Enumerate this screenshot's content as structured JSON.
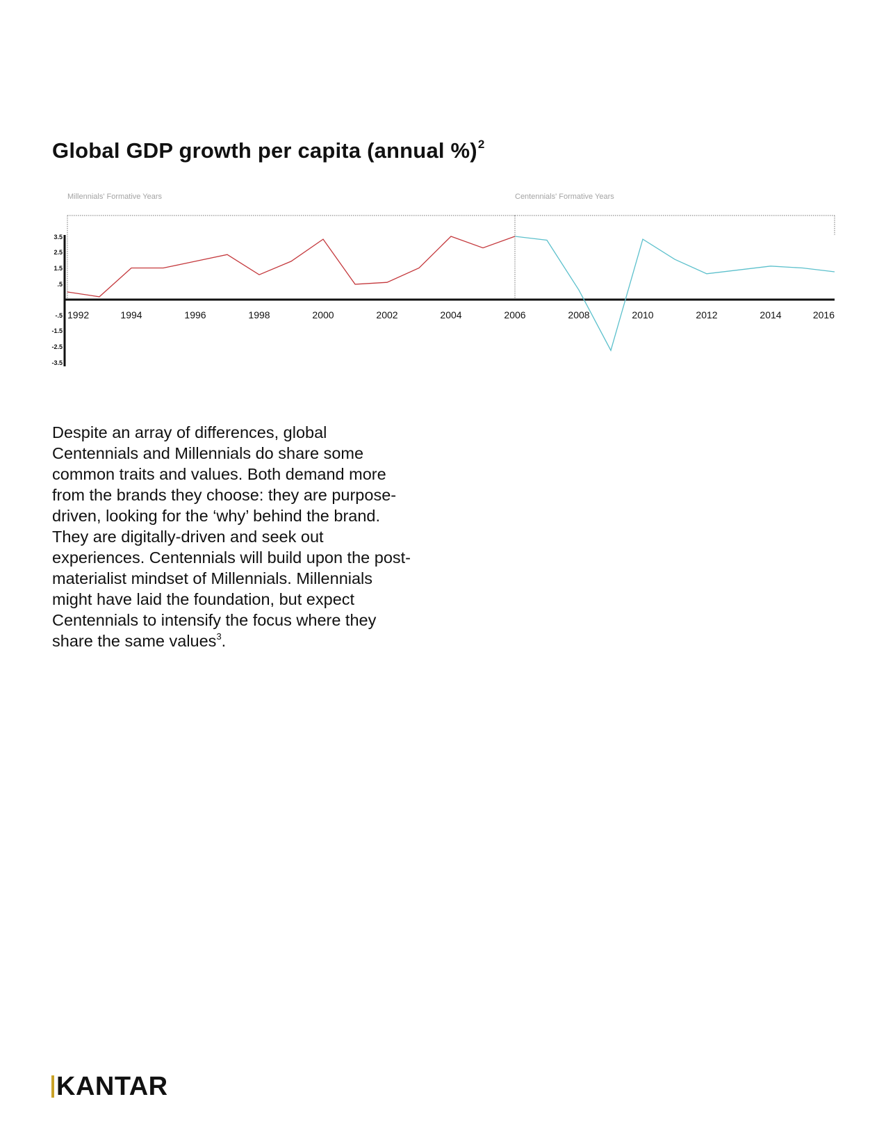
{
  "title": {
    "text": "Global GDP growth per capita (annual %)",
    "footnote": "2"
  },
  "body": {
    "paragraph": "Despite an array of differences, global Centennials and Millennials do share some common traits and values. Both demand more from the brands they choose: they are purpose-driven, looking for the ‘why’ behind the brand. They are digitally-driven and seek out experiences. Centennials will build upon the post-materialist mindset of Millennials. Millennials might have laid the foundation, but expect Centennials to intensify the focus where they share the same values",
    "footnote": "3",
    "end": "."
  },
  "logo": {
    "text": "KANTAR",
    "accent_color": "#c9a227"
  },
  "chart_data": {
    "type": "line",
    "title": "Global GDP growth per capita (annual %)",
    "xlabel": "",
    "ylabel": "",
    "xlim": [
      1992,
      2016
    ],
    "ylim": [
      -3.5,
      3.5
    ],
    "grid": false,
    "legend": "none",
    "x_ticks": [
      "1992",
      "1994",
      "1996",
      "1998",
      "2000",
      "2002",
      "2004",
      "2006",
      "2008",
      "2010",
      "2012",
      "2014",
      "2016"
    ],
    "y_ticks": [
      {
        "value": 3.5,
        "label": "3.5"
      },
      {
        "value": 2.5,
        "label": "2.5"
      },
      {
        "value": 1.5,
        "label": "1.5"
      },
      {
        "value": 0.5,
        "label": ".5"
      },
      {
        "value": -0.5,
        "label": "-.5"
      },
      {
        "value": -1.5,
        "label": "-1.5"
      },
      {
        "value": -2.5,
        "label": "-2.5"
      },
      {
        "value": -3.5,
        "label": "-3.5"
      }
    ],
    "periods": [
      {
        "label": "Millennials' Formative Years",
        "start": 1992,
        "end": 2006
      },
      {
        "label": "Centennials' Formative Years",
        "start": 2006,
        "end": 2016
      }
    ],
    "series": [
      {
        "color": "#c4383c",
        "x": [
          1992,
          1993,
          1994,
          1995,
          1996,
          1997,
          1998,
          1999,
          2000,
          2001,
          2002,
          2003,
          2004,
          2005,
          2006
        ],
        "values": [
          0.4,
          0.15,
          1.65,
          1.65,
          2.0,
          2.35,
          1.3,
          2.0,
          3.15,
          0.8,
          0.9,
          1.65,
          3.3,
          2.7,
          3.3
        ]
      },
      {
        "color": "#5cc0cc",
        "x": [
          2006,
          2007,
          2008,
          2009,
          2010,
          2011,
          2012,
          2013,
          2014,
          2015,
          2016
        ],
        "values": [
          3.3,
          3.1,
          0.5,
          -2.65,
          3.15,
          2.1,
          1.35,
          1.55,
          1.75,
          1.65,
          1.45
        ]
      }
    ]
  }
}
